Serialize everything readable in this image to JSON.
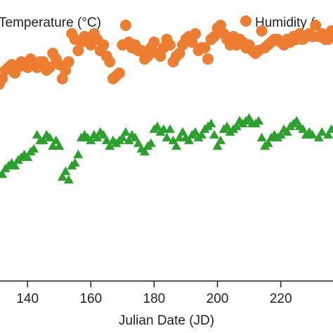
{
  "chart_data": {
    "type": "scatter",
    "title": "",
    "xlabel": "Julian Date (JD)",
    "ylabel": "",
    "xlim": [
      131.3,
      236.5
    ],
    "ylim": [
      0,
      100
    ],
    "x_ticks": [
      140,
      160,
      180,
      200,
      220
    ],
    "grid": false,
    "legend_position": "top",
    "series": [
      {
        "name": "Temperature (°C)",
        "marker": "triangle",
        "color": "#2ca02c",
        "points": [
          [
            131,
            38
          ],
          [
            132,
            38
          ],
          [
            133,
            40
          ],
          [
            134,
            41
          ],
          [
            135,
            42
          ],
          [
            136,
            41
          ],
          [
            137,
            43
          ],
          [
            138,
            44
          ],
          [
            139,
            45
          ],
          [
            140,
            44
          ],
          [
            141,
            46
          ],
          [
            142,
            47
          ],
          [
            143,
            52
          ],
          [
            144,
            50
          ],
          [
            145,
            50
          ],
          [
            146,
            52
          ],
          [
            147,
            51
          ],
          [
            148,
            48
          ],
          [
            149,
            50
          ],
          [
            150,
            48
          ],
          [
            151,
            37
          ],
          [
            152,
            39
          ],
          [
            153,
            36
          ],
          [
            154,
            41
          ],
          [
            155,
            42
          ],
          [
            156,
            45
          ],
          [
            157,
            51
          ],
          [
            158,
            52
          ],
          [
            159,
            51
          ],
          [
            160,
            50
          ],
          [
            161,
            52
          ],
          [
            162,
            51
          ],
          [
            163,
            53
          ],
          [
            164,
            52
          ],
          [
            165,
            50
          ],
          [
            166,
            48
          ],
          [
            167,
            50
          ],
          [
            168,
            49
          ],
          [
            169,
            50
          ],
          [
            170,
            51
          ],
          [
            171,
            53
          ],
          [
            172,
            50
          ],
          [
            173,
            52
          ],
          [
            174,
            51
          ],
          [
            175,
            49
          ],
          [
            176,
            47
          ],
          [
            177,
            46
          ],
          [
            178,
            48
          ],
          [
            179,
            49
          ],
          [
            180,
            54
          ],
          [
            181,
            55
          ],
          [
            182,
            53
          ],
          [
            183,
            54
          ],
          [
            184,
            51
          ],
          [
            185,
            54
          ],
          [
            186,
            50
          ],
          [
            187,
            48
          ],
          [
            188,
            51
          ],
          [
            189,
            53
          ],
          [
            190,
            51
          ],
          [
            191,
            50
          ],
          [
            192,
            52
          ],
          [
            193,
            53
          ],
          [
            194,
            51
          ],
          [
            195,
            52
          ],
          [
            196,
            54
          ],
          [
            197,
            55
          ],
          [
            198,
            56
          ],
          [
            199,
            52
          ],
          [
            200,
            48
          ],
          [
            201,
            50
          ],
          [
            202,
            54
          ],
          [
            203,
            55
          ],
          [
            204,
            53
          ],
          [
            205,
            54
          ],
          [
            206,
            55
          ],
          [
            207,
            57
          ],
          [
            208,
            56
          ],
          [
            209,
            57
          ],
          [
            210,
            58
          ],
          [
            211,
            56
          ],
          [
            212,
            56
          ],
          [
            213,
            57
          ],
          [
            214,
            51
          ],
          [
            215,
            48
          ],
          [
            216,
            49
          ],
          [
            217,
            51
          ],
          [
            218,
            52
          ],
          [
            219,
            51
          ],
          [
            220,
            52
          ],
          [
            221,
            54
          ],
          [
            222,
            53
          ],
          [
            223,
            55
          ],
          [
            224,
            56
          ],
          [
            225,
            57
          ],
          [
            226,
            55
          ],
          [
            227,
            54
          ],
          [
            228,
            52
          ],
          [
            229,
            53
          ],
          [
            230,
            52
          ],
          [
            232,
            51
          ],
          [
            233,
            53
          ],
          [
            235,
            52
          ],
          [
            236,
            54
          ]
        ]
      },
      {
        "name": "Humidity (",
        "marker": "circle",
        "color": "#ed7d31",
        "points": [
          [
            131,
            70
          ],
          [
            132,
            72
          ],
          [
            133,
            75
          ],
          [
            134,
            76
          ],
          [
            135,
            77
          ],
          [
            136,
            74
          ],
          [
            137,
            76
          ],
          [
            138,
            78
          ],
          [
            139,
            77
          ],
          [
            140,
            76
          ],
          [
            141,
            79
          ],
          [
            142,
            77
          ],
          [
            143,
            76
          ],
          [
            144,
            78
          ],
          [
            145,
            78
          ],
          [
            146,
            75
          ],
          [
            147,
            76
          ],
          [
            148,
            81
          ],
          [
            149,
            79
          ],
          [
            150,
            77
          ],
          [
            151,
            72
          ],
          [
            152,
            75
          ],
          [
            153,
            78
          ],
          [
            154,
            88
          ],
          [
            155,
            86
          ],
          [
            156,
            82
          ],
          [
            157,
            85
          ],
          [
            158,
            87
          ],
          [
            159,
            86
          ],
          [
            160,
            84
          ],
          [
            161,
            88
          ],
          [
            162,
            86
          ],
          [
            163,
            82
          ],
          [
            164,
            84
          ],
          [
            165,
            80
          ],
          [
            166,
            78
          ],
          [
            167,
            72
          ],
          [
            168,
            73
          ],
          [
            169,
            74
          ],
          [
            170,
            84
          ],
          [
            171,
            91
          ],
          [
            172,
            85
          ],
          [
            173,
            83
          ],
          [
            174,
            84
          ],
          [
            175,
            82
          ],
          [
            176,
            82
          ],
          [
            177,
            79
          ],
          [
            178,
            80
          ],
          [
            179,
            83
          ],
          [
            180,
            85
          ],
          [
            181,
            81
          ],
          [
            182,
            80
          ],
          [
            183,
            83
          ],
          [
            184,
            86
          ],
          [
            185,
            84
          ],
          [
            186,
            78
          ],
          [
            187,
            80
          ],
          [
            188,
            81
          ],
          [
            189,
            84
          ],
          [
            190,
            86
          ],
          [
            191,
            87
          ],
          [
            192,
            85
          ],
          [
            193,
            88
          ],
          [
            194,
            82
          ],
          [
            195,
            83
          ],
          [
            196,
            83
          ],
          [
            197,
            79
          ],
          [
            198,
            86
          ],
          [
            199,
            87
          ],
          [
            200,
            90
          ],
          [
            201,
            91
          ],
          [
            202,
            88
          ],
          [
            203,
            86
          ],
          [
            204,
            84
          ],
          [
            205,
            87
          ],
          [
            206,
            84
          ],
          [
            207,
            86
          ],
          [
            208,
            85
          ],
          [
            209,
            83
          ],
          [
            210,
            84
          ],
          [
            211,
            82
          ],
          [
            212,
            81
          ],
          [
            213,
            82
          ],
          [
            214,
            89
          ],
          [
            215,
            83
          ],
          [
            216,
            84
          ],
          [
            217,
            85
          ],
          [
            218,
            86
          ],
          [
            219,
            86
          ],
          [
            220,
            85
          ],
          [
            221,
            84
          ],
          [
            222,
            86
          ],
          [
            223,
            85
          ],
          [
            224,
            87
          ],
          [
            225,
            86
          ],
          [
            226,
            88
          ],
          [
            227,
            86
          ],
          [
            228,
            87
          ],
          [
            229,
            88
          ],
          [
            230,
            87
          ],
          [
            231,
            91
          ],
          [
            232,
            87
          ],
          [
            233,
            88
          ],
          [
            234,
            86
          ],
          [
            235,
            86
          ],
          [
            236,
            89
          ]
        ]
      }
    ]
  }
}
